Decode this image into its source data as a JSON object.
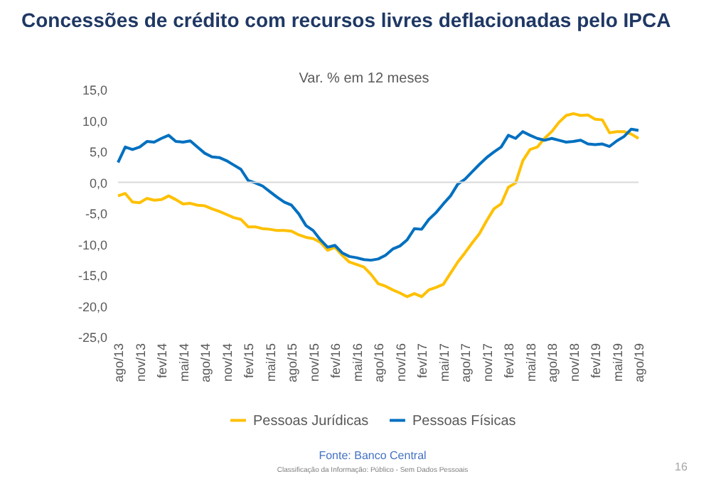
{
  "chart_data": {
    "type": "line",
    "title": "Concessões de crédito com recursos livres deflacionadas pelo IPCA",
    "subtitle": "Var. % em 12 meses",
    "categories": [
      "ago/13",
      null,
      null,
      "nov/13",
      null,
      null,
      "fev/14",
      null,
      null,
      "mai/14",
      null,
      null,
      "ago/14",
      null,
      null,
      "nov/14",
      null,
      null,
      "fev/15",
      null,
      null,
      "mai/15",
      null,
      null,
      "ago/15",
      null,
      null,
      "nov/15",
      null,
      null,
      "fev/16",
      null,
      null,
      "mai/16",
      null,
      null,
      "ago/16",
      null,
      null,
      "nov/16",
      null,
      null,
      "fev/17",
      null,
      null,
      "mai/17",
      null,
      null,
      "ago/17",
      null,
      null,
      "nov/17",
      null,
      null,
      "fev/18",
      null,
      null,
      "mai/18",
      null,
      null,
      "ago/18",
      null,
      null,
      "nov/18",
      null,
      null,
      "fev/19",
      null,
      null,
      "mai/19",
      null,
      null,
      "ago/19"
    ],
    "series": [
      {
        "name": "Pessoas Jurídicas",
        "color": "#ffc000",
        "values": [
          -2.2,
          -1.8,
          -3.2,
          -3.3,
          -2.6,
          -2.9,
          -2.8,
          -2.2,
          -2.8,
          -3.5,
          -3.4,
          -3.7,
          -3.8,
          -4.3,
          -4.7,
          -5.2,
          -5.7,
          -6.0,
          -7.2,
          -7.2,
          -7.5,
          -7.6,
          -7.8,
          -7.8,
          -7.9,
          -8.5,
          -8.9,
          -9.1,
          -9.7,
          -11.0,
          -10.5,
          -11.8,
          -12.9,
          -13.3,
          -13.7,
          -14.9,
          -16.4,
          -16.8,
          -17.4,
          -17.9,
          -18.5,
          -18.0,
          -18.5,
          -17.4,
          -17.0,
          -16.5,
          -14.7,
          -12.9,
          -11.4,
          -9.8,
          -8.3,
          -6.2,
          -4.3,
          -3.5,
          -0.8,
          -0.1,
          3.5,
          5.3,
          5.7,
          7.1,
          8.2,
          9.7,
          10.8,
          11.1,
          10.8,
          10.9,
          10.2,
          10.1,
          8.0,
          8.2,
          8.2,
          7.8,
          7.1
        ]
      },
      {
        "name": "Pessoas Físicas",
        "color": "#0070c0",
        "values": [
          3.2,
          5.7,
          5.3,
          5.7,
          6.6,
          6.5,
          7.1,
          7.6,
          6.6,
          6.5,
          6.7,
          5.7,
          4.7,
          4.1,
          4.0,
          3.5,
          2.8,
          2.1,
          0.3,
          -0.1,
          -0.6,
          -1.5,
          -2.4,
          -3.2,
          -3.7,
          -5.1,
          -7.0,
          -7.8,
          -9.3,
          -10.5,
          -10.2,
          -11.4,
          -12.0,
          -12.2,
          -12.5,
          -12.6,
          -12.4,
          -11.8,
          -10.8,
          -10.3,
          -9.3,
          -7.5,
          -7.6,
          -6.0,
          -4.9,
          -3.5,
          -2.2,
          -0.3,
          0.5,
          1.7,
          2.9,
          4.0,
          4.9,
          5.7,
          7.6,
          7.1,
          8.2,
          7.6,
          7.1,
          6.8,
          7.1,
          6.8,
          6.5,
          6.6,
          6.8,
          6.2,
          6.1,
          6.2,
          5.8,
          6.7,
          7.4,
          8.6,
          8.4
        ]
      }
    ],
    "ylim": [
      -25,
      15
    ],
    "yticks": [
      {
        "value": -25,
        "label": "-25,0"
      },
      {
        "value": -20,
        "label": "-20,0"
      },
      {
        "value": -15,
        "label": "-15,0"
      },
      {
        "value": -10,
        "label": "-10,0"
      },
      {
        "value": -5,
        "label": "-5,0"
      },
      {
        "value": 0,
        "label": "0,0"
      },
      {
        "value": 5,
        "label": "5,0"
      },
      {
        "value": 10,
        "label": "10,0"
      },
      {
        "value": 15,
        "label": "15,0"
      }
    ],
    "ref_lines": [
      {
        "axis": "y",
        "value": 0,
        "color": "#d9d9d9"
      }
    ],
    "legend": "bottom",
    "grid": false,
    "marker": "none",
    "line_style": "solid",
    "annotations": [
      "Fonte: Banco Central",
      "Classificação da Informação: Público - Sem Dados Pessoais",
      "16"
    ]
  }
}
